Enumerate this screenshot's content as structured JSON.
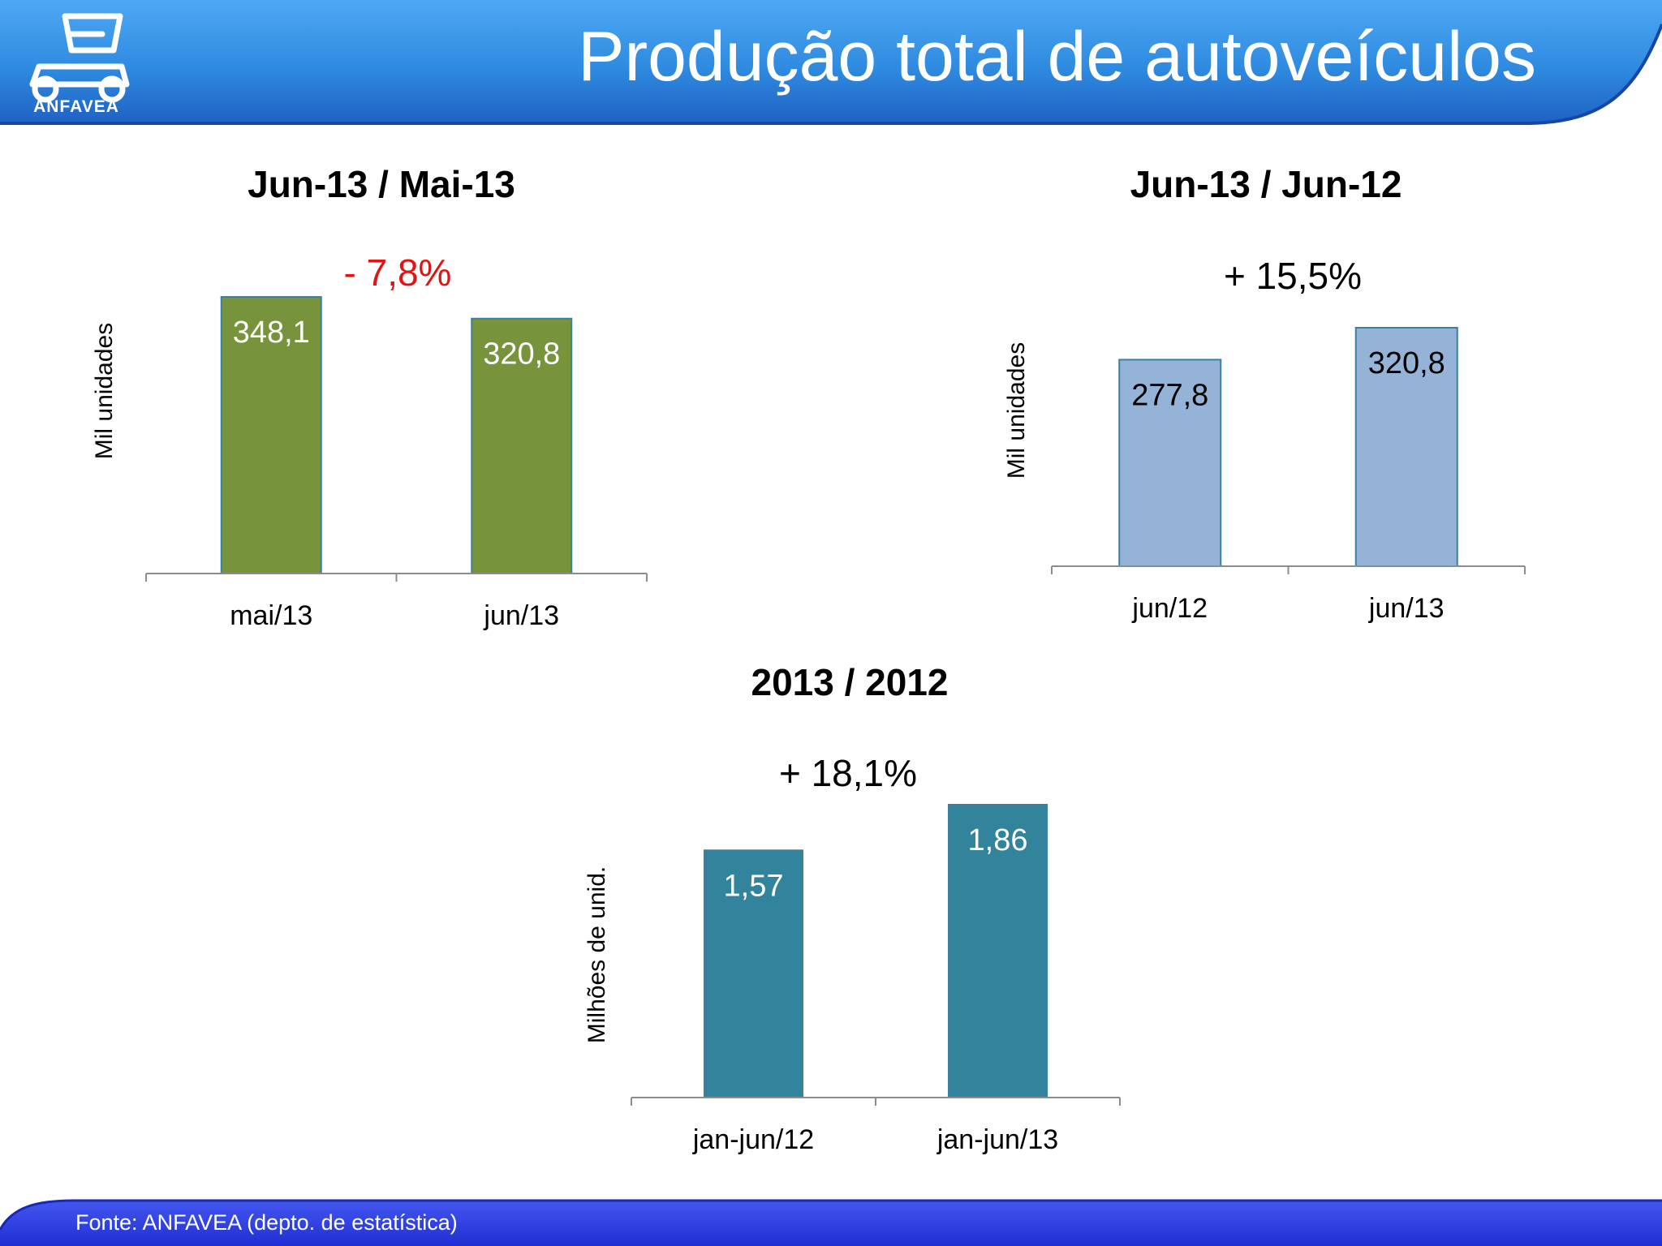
{
  "header": {
    "title": "Produção total de autoveículos",
    "logo_text": "ANFAVEA"
  },
  "footer": {
    "source": "Fonte: ANFAVEA (depto. de estatística)"
  },
  "colors": {
    "header_blue": "#2f8be0",
    "footer_blue": "#2a40e6",
    "decline": "#e01414",
    "chart1_bar": "#77933c",
    "chart2_bar": "#95b3d7",
    "chart3_bar": "#31849b"
  },
  "chart_data": [
    {
      "type": "bar",
      "title": "Jun-13 / Mai-13",
      "change": "- 7,8%",
      "change_color": "#e01414",
      "ylabel": "Mil unidades",
      "categories": [
        "mai/13",
        "jun/13"
      ],
      "values": [
        348.1,
        320.8
      ],
      "value_labels": [
        "348,1",
        "320,8"
      ],
      "bar_color": "#77933c",
      "label_color": "#ffffff",
      "ylim": [
        0,
        348.1
      ]
    },
    {
      "type": "bar",
      "title": "Jun-13 / Jun-12",
      "change": "+ 15,5%",
      "change_color": "#000000",
      "ylabel": "Mil unidades",
      "categories": [
        "jun/12",
        "jun/13"
      ],
      "values": [
        277.8,
        320.8
      ],
      "value_labels": [
        "277,8",
        "320,8"
      ],
      "bar_color": "#95b3d7",
      "label_color": "#000000",
      "ylim": [
        0,
        320.8
      ]
    },
    {
      "type": "bar",
      "title": "2013 / 2012",
      "change": "+ 18,1%",
      "change_color": "#000000",
      "ylabel": "Milhões de  unid.",
      "categories": [
        "jan-jun/12",
        "jan-jun/13"
      ],
      "values": [
        1.57,
        1.86
      ],
      "value_labels": [
        "1,57",
        "1,86"
      ],
      "bar_color": "#31849b",
      "label_color": "#ffffff",
      "ylim": [
        0,
        1.86
      ]
    }
  ]
}
